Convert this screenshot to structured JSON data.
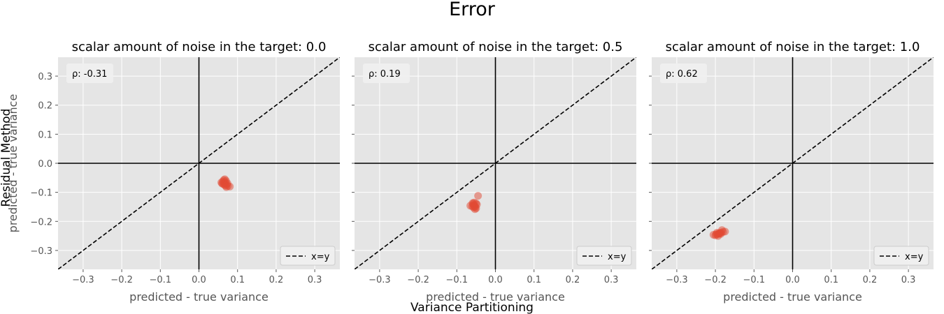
{
  "figure": {
    "suptitle": "Error",
    "shared_ylabel": "Residual Method",
    "shared_xlabel": "Variance Partitioning"
  },
  "colors": {
    "panel_bg": "#e5e5e5",
    "grid": "#ffffff",
    "points": "#e24a33",
    "text": "#000000",
    "tick_text": "#555555"
  },
  "chart_data": [
    {
      "type": "scatter",
      "title": "scalar amount of noise in the target: 0.0",
      "xlabel": "predicted - true variance",
      "ylabel": "predicted - true variance",
      "xlim": [
        -0.365,
        0.365
      ],
      "ylim": [
        -0.365,
        0.365
      ],
      "xticks": [
        "−0.3",
        "−0.2",
        "−0.1",
        "0.0",
        "0.1",
        "0.2",
        "0.3"
      ],
      "yticks": [
        "−0.3",
        "−0.2",
        "−0.1",
        "0.0",
        "0.1",
        "0.2",
        "0.3"
      ],
      "annotation": "ρ: -0.31",
      "legend": {
        "label": "x=y",
        "position": "lower-right"
      },
      "grid": true,
      "points": [
        {
          "x": 0.062,
          "y": -0.063
        },
        {
          "x": 0.066,
          "y": -0.068
        },
        {
          "x": 0.07,
          "y": -0.06
        },
        {
          "x": 0.067,
          "y": -0.055
        },
        {
          "x": 0.06,
          "y": -0.07
        },
        {
          "x": 0.072,
          "y": -0.072
        },
        {
          "x": 0.068,
          "y": -0.065
        },
        {
          "x": 0.064,
          "y": -0.058
        },
        {
          "x": 0.075,
          "y": -0.078
        },
        {
          "x": 0.071,
          "y": -0.082
        },
        {
          "x": 0.066,
          "y": -0.074
        },
        {
          "x": 0.058,
          "y": -0.066
        },
        {
          "x": 0.074,
          "y": -0.069
        },
        {
          "x": 0.069,
          "y": -0.077
        },
        {
          "x": 0.063,
          "y": -0.071
        },
        {
          "x": 0.08,
          "y": -0.08
        }
      ]
    },
    {
      "type": "scatter",
      "title": "scalar amount of noise in the target: 0.5",
      "xlabel": "predicted - true variance",
      "ylabel": "",
      "xlim": [
        -0.365,
        0.365
      ],
      "ylim": [
        -0.365,
        0.365
      ],
      "xticks": [
        "−0.3",
        "−0.2",
        "−0.1",
        "0.0",
        "0.1",
        "0.2",
        "0.3"
      ],
      "yticks": [],
      "annotation": "ρ: 0.19",
      "legend": {
        "label": "x=y",
        "position": "lower-right"
      },
      "grid": true,
      "points": [
        {
          "x": -0.055,
          "y": -0.145
        },
        {
          "x": -0.052,
          "y": -0.15
        },
        {
          "x": -0.058,
          "y": -0.14
        },
        {
          "x": -0.05,
          "y": -0.155
        },
        {
          "x": -0.055,
          "y": -0.135
        },
        {
          "x": -0.06,
          "y": -0.148
        },
        {
          "x": -0.048,
          "y": -0.142
        },
        {
          "x": -0.053,
          "y": -0.158
        },
        {
          "x": -0.065,
          "y": -0.146
        },
        {
          "x": -0.057,
          "y": -0.152
        },
        {
          "x": -0.045,
          "y": -0.112
        },
        {
          "x": -0.05,
          "y": -0.138
        },
        {
          "x": -0.056,
          "y": -0.144
        },
        {
          "x": -0.054,
          "y": -0.149
        },
        {
          "x": -0.059,
          "y": -0.137
        }
      ]
    },
    {
      "type": "scatter",
      "title": "scalar amount of noise in the target: 1.0",
      "xlabel": "predicted - true variance",
      "ylabel": "",
      "xlim": [
        -0.365,
        0.365
      ],
      "ylim": [
        -0.365,
        0.365
      ],
      "xticks": [
        "−0.3",
        "−0.2",
        "−0.1",
        "0.0",
        "0.1",
        "0.2",
        "0.3"
      ],
      "yticks": [],
      "annotation": "ρ: 0.62",
      "legend": {
        "label": "x=y",
        "position": "lower-right"
      },
      "grid": true,
      "points": [
        {
          "x": -0.195,
          "y": -0.245
        },
        {
          "x": -0.19,
          "y": -0.242
        },
        {
          "x": -0.185,
          "y": -0.238
        },
        {
          "x": -0.2,
          "y": -0.248
        },
        {
          "x": -0.18,
          "y": -0.236
        },
        {
          "x": -0.193,
          "y": -0.25
        },
        {
          "x": -0.188,
          "y": -0.24
        },
        {
          "x": -0.198,
          "y": -0.244
        },
        {
          "x": -0.175,
          "y": -0.235
        },
        {
          "x": -0.205,
          "y": -0.246
        },
        {
          "x": -0.183,
          "y": -0.23
        },
        {
          "x": -0.191,
          "y": -0.241
        },
        {
          "x": -0.186,
          "y": -0.243
        },
        {
          "x": -0.196,
          "y": -0.239
        }
      ]
    }
  ]
}
